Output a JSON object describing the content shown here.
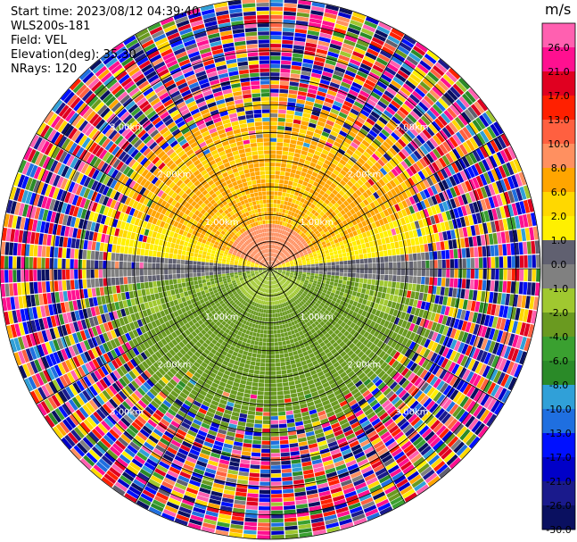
{
  "info": {
    "start_time": "Start time: 2023/08/12 04:39:40",
    "instrument": "WLS200s-181",
    "field": "Field: VEL",
    "elevation": "Elevation(deg): 35.30",
    "nrays": "NRays: 120"
  },
  "chart_data": {
    "type": "ppi",
    "field": "VEL",
    "units": "m/s",
    "nrays": 120,
    "elevation_deg": 35.3,
    "max_range_km": 3.3,
    "range_rings_km": [
      1.0,
      2.0,
      3.0
    ],
    "range_labels": [
      "1.00km",
      "2.00km",
      "3.00km"
    ],
    "colorbar": {
      "unit": "m/s",
      "bounds": [
        -30,
        -26,
        -21,
        -17,
        -13,
        -10,
        -8,
        -6,
        -4,
        -2,
        -1,
        0,
        1,
        2,
        6,
        8,
        10,
        13,
        17,
        21,
        26,
        30
      ],
      "tick_labels": [
        "26.0",
        "21.0",
        "17.0",
        "13.0",
        "10.0",
        "8.0",
        "6.0",
        "2.0",
        "1.0",
        "0.0",
        "-1.0",
        "-2.0",
        "-4.0",
        "-6.0",
        "-8.0",
        "-10.0",
        "-13.0",
        "-17.0",
        "-21.0",
        "-26.0",
        "-30.0"
      ],
      "colors": [
        "#0a1060",
        "#1a1a8c",
        "#0000c8",
        "#0010ff",
        "#1f6fe0",
        "#30a0d8",
        "#2a8a28",
        "#3aa030",
        "#6a9a20",
        "#a0c830",
        "#808080",
        "#606070",
        "#fff000",
        "#ffd800",
        "#ffa500",
        "#ff9060",
        "#ff6040",
        "#ff2000",
        "#e00020",
        "#ff1090",
        "#ff60b0"
      ]
    },
    "pattern": {
      "north_sector_velocity": 5,
      "south_sector_velocity": -4,
      "east_west_velocity": 1.5,
      "near_core_north": 8,
      "near_core_south": -1.5,
      "valid_range_km": 1.8,
      "noise_start_km": 2.0
    }
  }
}
